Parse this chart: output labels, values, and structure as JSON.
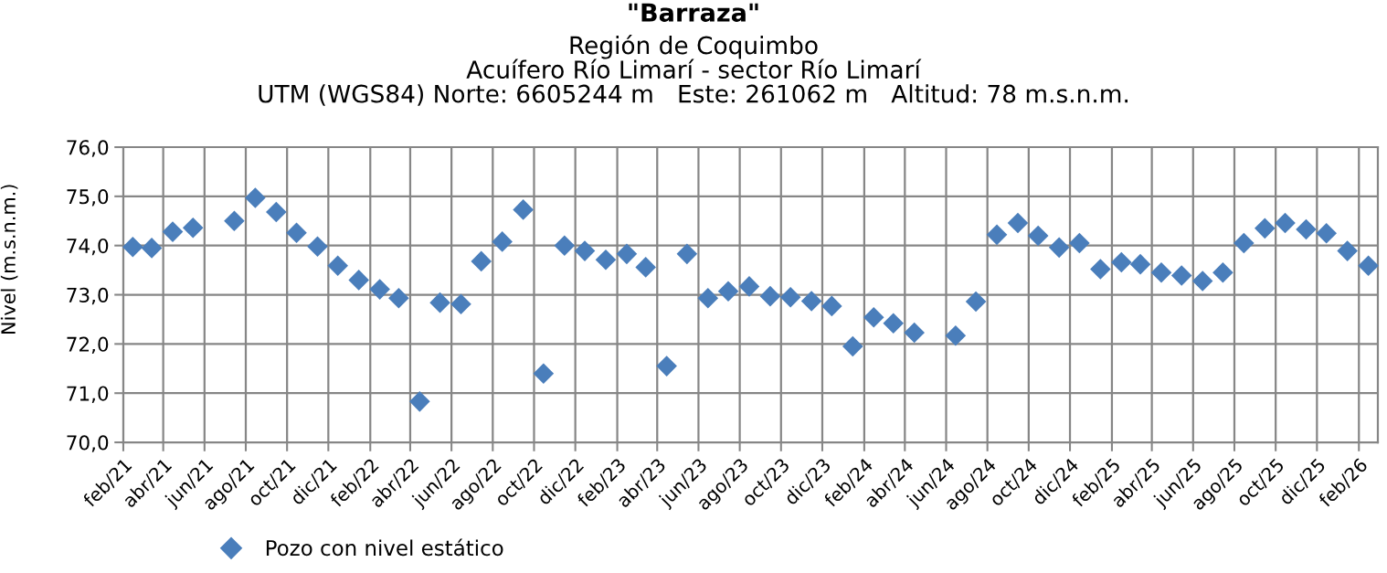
{
  "chart_data": {
    "type": "scatter",
    "title": "\"Barraza\"",
    "subtitle": "Región de Coquimbo\nAcuífero Río Limarí - sector Río Limarí\nUTM (WGS84) Norte: 6605244 m   Este: 261062 m   Altitud: 78 m.s.n.m.",
    "ylabel": "Nivel (m.s.n.m.)",
    "x": [
      "2021-02-15",
      "2021-03-15",
      "2021-04-15",
      "2021-05-15",
      "2021-07-15",
      "2021-08-15",
      "2021-09-15",
      "2021-10-15",
      "2021-11-15",
      "2021-12-15",
      "2022-01-15",
      "2022-02-15",
      "2022-03-15",
      "2022-04-15",
      "2022-05-15",
      "2022-06-15",
      "2022-07-15",
      "2022-08-15",
      "2022-09-15",
      "2022-10-15",
      "2022-11-15",
      "2022-12-15",
      "2023-01-15",
      "2023-02-15",
      "2023-03-15",
      "2023-04-15",
      "2023-05-15",
      "2023-06-15",
      "2023-07-15",
      "2023-08-15",
      "2023-09-15",
      "2023-10-15",
      "2023-11-15",
      "2023-12-15",
      "2024-01-15",
      "2024-02-15",
      "2024-03-15",
      "2024-04-15",
      "2024-06-15",
      "2024-07-15",
      "2024-08-15",
      "2024-09-15",
      "2024-10-15",
      "2024-11-15",
      "2024-12-15",
      "2025-01-15",
      "2025-02-15",
      "2025-03-15",
      "2025-04-15",
      "2025-05-15",
      "2025-06-15",
      "2025-07-15",
      "2025-08-15",
      "2025-09-15",
      "2025-10-15",
      "2025-11-15",
      "2025-12-15",
      "2026-01-15",
      "2026-02-15"
    ],
    "series": [
      {
        "name": "Pozo con nivel estático",
        "color": "#4a7ebb",
        "values": [
          73.97,
          73.95,
          74.28,
          74.36,
          74.5,
          74.97,
          74.68,
          74.26,
          73.98,
          73.59,
          73.3,
          73.11,
          72.93,
          70.83,
          72.84,
          72.81,
          73.68,
          74.08,
          74.73,
          71.4,
          74.0,
          73.89,
          73.71,
          73.83,
          73.56,
          71.55,
          73.83,
          72.93,
          73.07,
          73.17,
          72.97,
          72.95,
          72.87,
          72.77,
          71.95,
          72.54,
          72.42,
          72.23,
          72.17,
          72.86,
          74.22,
          74.46,
          74.2,
          73.96,
          74.05,
          73.52,
          73.66,
          73.62,
          73.45,
          73.39,
          73.28,
          73.45,
          74.05,
          74.35,
          74.46,
          74.33,
          74.25,
          73.89,
          73.59
        ]
      }
    ],
    "xlim": [
      "2021-02-01",
      "2026-03-01"
    ],
    "xticks": [
      {
        "value": "2021-02-01",
        "label": "feb/21"
      },
      {
        "value": "2021-04-01",
        "label": "abr/21"
      },
      {
        "value": "2021-06-01",
        "label": "jun/21"
      },
      {
        "value": "2021-08-01",
        "label": "ago/21"
      },
      {
        "value": "2021-10-01",
        "label": "oct/21"
      },
      {
        "value": "2021-12-01",
        "label": "dic/21"
      },
      {
        "value": "2022-02-01",
        "label": "feb/22"
      },
      {
        "value": "2022-04-01",
        "label": "abr/22"
      },
      {
        "value": "2022-06-01",
        "label": "jun/22"
      },
      {
        "value": "2022-08-01",
        "label": "ago/22"
      },
      {
        "value": "2022-10-01",
        "label": "oct/22"
      },
      {
        "value": "2022-12-01",
        "label": "dic/22"
      },
      {
        "value": "2023-02-01",
        "label": "feb/23"
      },
      {
        "value": "2023-04-01",
        "label": "abr/23"
      },
      {
        "value": "2023-06-01",
        "label": "jun/23"
      },
      {
        "value": "2023-08-01",
        "label": "ago/23"
      },
      {
        "value": "2023-10-01",
        "label": "oct/23"
      },
      {
        "value": "2023-12-01",
        "label": "dic/23"
      },
      {
        "value": "2024-02-01",
        "label": "feb/24"
      },
      {
        "value": "2024-04-01",
        "label": "abr/24"
      },
      {
        "value": "2024-06-01",
        "label": "jun/24"
      },
      {
        "value": "2024-08-01",
        "label": "ago/24"
      },
      {
        "value": "2024-10-01",
        "label": "oct/24"
      },
      {
        "value": "2024-12-01",
        "label": "dic/24"
      },
      {
        "value": "2025-02-01",
        "label": "feb/25"
      },
      {
        "value": "2025-04-01",
        "label": "abr/25"
      },
      {
        "value": "2025-06-01",
        "label": "jun/25"
      },
      {
        "value": "2025-08-01",
        "label": "ago/25"
      },
      {
        "value": "2025-10-01",
        "label": "oct/25"
      },
      {
        "value": "2025-12-01",
        "label": "dic/25"
      },
      {
        "value": "2026-02-01",
        "label": "feb/26"
      }
    ],
    "ylim": [
      70,
      76
    ],
    "yticks": [
      {
        "value": 70,
        "label": "70,0"
      },
      {
        "value": 71,
        "label": "71,0"
      },
      {
        "value": 72,
        "label": "72,0"
      },
      {
        "value": 73,
        "label": "73,0"
      },
      {
        "value": 74,
        "label": "74,0"
      },
      {
        "value": 75,
        "label": "75,0"
      },
      {
        "value": 76,
        "label": "76,0"
      }
    ],
    "grid": true,
    "legend": "bottom",
    "marker": "diamond"
  }
}
